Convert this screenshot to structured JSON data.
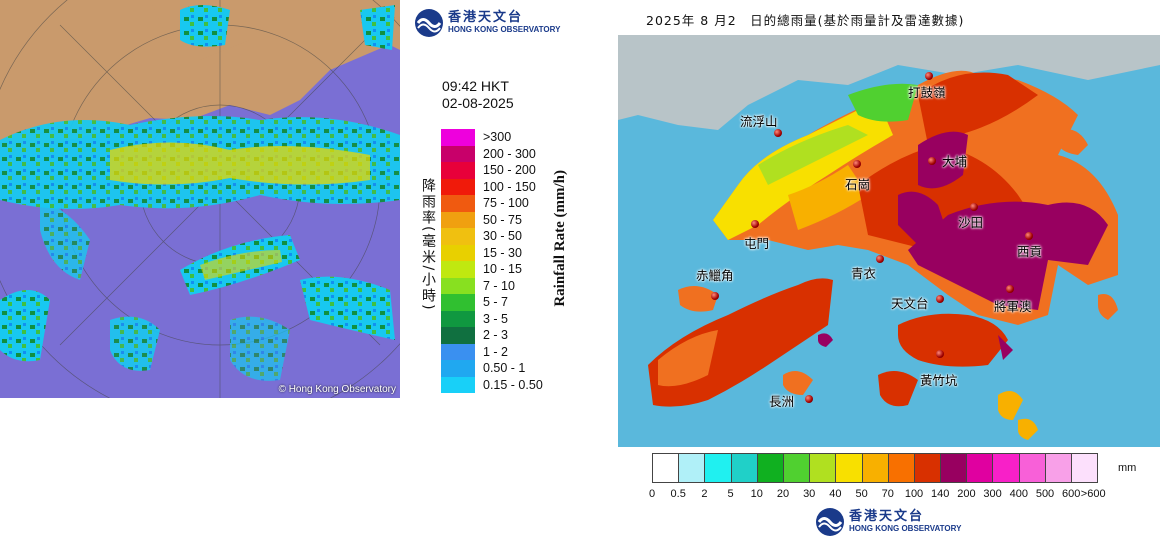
{
  "radar": {
    "copyright": "© Hong Kong Observatory"
  },
  "header_logo": {
    "name_zh": "香港天文台",
    "name_en": "HONG KONG OBSERVATORY"
  },
  "timestamp": {
    "time": "09:42 HKT",
    "date": "02-08-2025"
  },
  "rate_legend": {
    "title_zh": "降雨率(毫米/小時)",
    "title_en": "Rainfall Rate (mm/h)",
    "items": [
      {
        "label": ">300",
        "color": "#ee00dd"
      },
      {
        "label": "200 - 300",
        "color": "#c8006a"
      },
      {
        "label": "150 - 200",
        "color": "#e8003a"
      },
      {
        "label": "100 - 150",
        "color": "#f01a0a"
      },
      {
        "label": "75 - 100",
        "color": "#f05a10"
      },
      {
        "label": "50 - 75",
        "color": "#f0a010"
      },
      {
        "label": "30 - 50",
        "color": "#f0c010"
      },
      {
        "label": "15 - 30",
        "color": "#e8d000"
      },
      {
        "label": "10 - 15",
        "color": "#c0e810"
      },
      {
        "label": "7 - 10",
        "color": "#88e020"
      },
      {
        "label": "5 - 7",
        "color": "#30c030"
      },
      {
        "label": "3 - 5",
        "color": "#109840"
      },
      {
        "label": "2 - 3",
        "color": "#107040"
      },
      {
        "label": "1 - 2",
        "color": "#3a90f0"
      },
      {
        "label": "0.50 - 1",
        "color": "#20a8f0"
      },
      {
        "label": "0.15 - 0.50",
        "color": "#18d0f8"
      }
    ]
  },
  "daily_map": {
    "title": "2025年 8 月2　日的總雨量(基於雨量計及雷達數據)",
    "places": [
      {
        "name": "打鼓嶺"
      },
      {
        "name": "流浮山"
      },
      {
        "name": "大埔"
      },
      {
        "name": "石崗"
      },
      {
        "name": "沙田"
      },
      {
        "name": "屯門"
      },
      {
        "name": "西貢"
      },
      {
        "name": "青衣"
      },
      {
        "name": "赤鱲角"
      },
      {
        "name": "天文台"
      },
      {
        "name": "將軍澳"
      },
      {
        "name": "黃竹坑"
      },
      {
        "name": "長洲"
      }
    ]
  },
  "total_scale": {
    "unit": "mm",
    "colors": [
      "#ffffff",
      "#b0f0f8",
      "#20f0f0",
      "#20d0c8",
      "#10b020",
      "#50d030",
      "#b0e020",
      "#f8e000",
      "#f8b000",
      "#f87000",
      "#d83000",
      "#980060",
      "#e000a0",
      "#f820c8",
      "#f860d8",
      "#f8a0e8",
      "#fce0fc"
    ],
    "labels": [
      "0",
      "0.5",
      "2",
      "5",
      "10",
      "20",
      "30",
      "40",
      "50",
      "70",
      "100",
      "140",
      "200",
      "300",
      "400",
      "500",
      "600",
      ">600"
    ]
  },
  "footer_logo": {
    "name_zh": "香港天文台",
    "name_en": "HONG KONG OBSERVATORY"
  }
}
